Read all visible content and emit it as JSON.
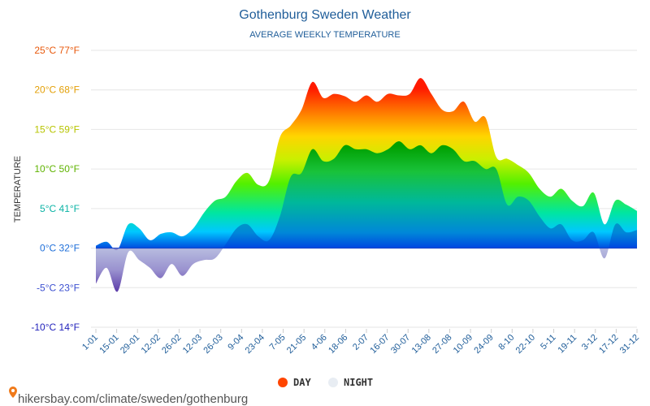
{
  "chart_data": {
    "type": "area",
    "title": "Gothenburg Sweden Weather",
    "subtitle": "AVERAGE WEEKLY TEMPERATURE",
    "ylabel": "TEMPERATURE",
    "ylim": [
      -10,
      25
    ],
    "y_ticks": [
      {
        "value": 25,
        "label": "25°C 77°F",
        "color": "#e8590c"
      },
      {
        "value": 20,
        "label": "20°C 68°F",
        "color": "#e3a008"
      },
      {
        "value": 15,
        "label": "15°C 59°F",
        "color": "#b7c400"
      },
      {
        "value": 10,
        "label": "10°C 50°F",
        "color": "#5fb300"
      },
      {
        "value": 5,
        "label": "5°C 41°F",
        "color": "#0bb3a5"
      },
      {
        "value": 0,
        "label": "0°C 32°F",
        "color": "#1f6fd9"
      },
      {
        "value": -5,
        "label": "-5°C 23°F",
        "color": "#3b4fd0"
      },
      {
        "value": -10,
        "label": "-10°C 14°F",
        "color": "#2222bb"
      }
    ],
    "x_labels": [
      "1-01",
      "15-01",
      "29-01",
      "12-02",
      "26-02",
      "12-03",
      "26-03",
      "9-04",
      "23-04",
      "7-05",
      "21-05",
      "4-06",
      "18-06",
      "2-07",
      "16-07",
      "30-07",
      "13-08",
      "27-08",
      "10-09",
      "24-09",
      "8-10",
      "22-10",
      "5-11",
      "19-11",
      "3-12",
      "17-12",
      "31-12"
    ],
    "series": [
      {
        "name": "DAY",
        "color": "#ff4500",
        "values": [
          0.3,
          0.8,
          -0.2,
          3.0,
          2.5,
          1.0,
          1.8,
          2.0,
          1.5,
          2.5,
          4.5,
          6.0,
          6.5,
          8.5,
          9.5,
          8.0,
          8.5,
          14.0,
          15.5,
          17.5,
          21.0,
          19.0,
          19.5,
          19.2,
          18.5,
          19.3,
          18.5,
          19.5,
          19.3,
          19.5,
          21.5,
          19.5,
          17.5,
          17.3,
          18.5,
          16.0,
          16.5,
          11.5,
          11.3,
          10.5,
          9.5,
          7.5,
          6.5,
          7.5,
          6.0,
          5.3,
          7.0,
          3.0,
          6.0,
          5.5,
          4.7
        ]
      },
      {
        "name": "NIGHT",
        "color": "#e8edf3",
        "values": [
          -4.5,
          -2.5,
          -5.5,
          -0.5,
          -1.5,
          -2.5,
          -3.8,
          -2.0,
          -3.5,
          -2.0,
          -1.5,
          -1.3,
          0.5,
          2.5,
          3.0,
          1.5,
          1.0,
          4.0,
          9.0,
          9.5,
          12.5,
          11.0,
          11.3,
          13.0,
          12.5,
          12.5,
          12.0,
          12.5,
          13.5,
          12.5,
          13.0,
          12.0,
          13.0,
          12.5,
          11.0,
          11.0,
          10.0,
          10.0,
          5.5,
          6.5,
          6.0,
          4.0,
          2.5,
          3.0,
          1.0,
          1.0,
          2.0,
          -1.3,
          3.0,
          2.0,
          2.3
        ]
      }
    ],
    "source": "hikersbay.com/climate/sweden/gothenburg"
  }
}
